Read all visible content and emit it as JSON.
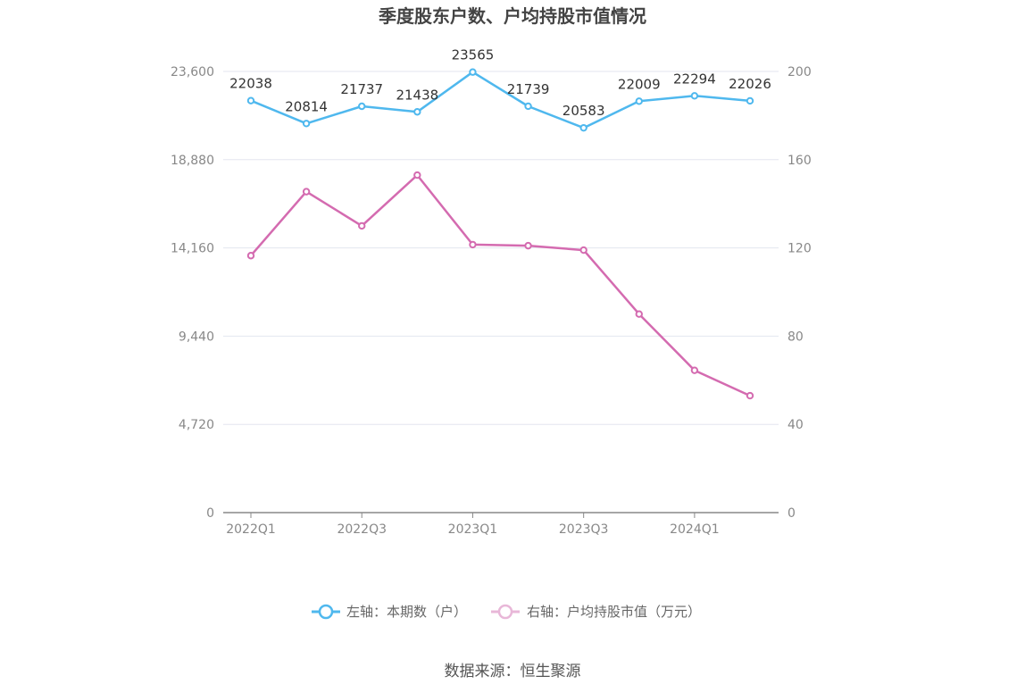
{
  "chart_data": {
    "type": "line",
    "title": "季度股东户数、户均持股市值情况",
    "categories": [
      "2022Q1",
      "2022Q2",
      "2022Q3",
      "2022Q4",
      "2023Q1",
      "2023Q2",
      "2023Q3",
      "2023Q4",
      "2024Q1",
      "2024Q2"
    ],
    "x_tick_labels": [
      "2022Q1",
      "2022Q3",
      "2023Q1",
      "2023Q3",
      "2024Q1"
    ],
    "y_left": {
      "ticks": [
        "0",
        "4,720",
        "9,440",
        "14,160",
        "18,880",
        "23,600"
      ],
      "min": 0,
      "max": 23600
    },
    "y_right": {
      "ticks": [
        "0",
        "40",
        "80",
        "120",
        "160",
        "200"
      ],
      "min": 0,
      "max": 200
    },
    "series": [
      {
        "name": "左轴：本期数（户）",
        "axis": "left",
        "color": "#4fb8ee",
        "values": [
          22038,
          20814,
          21737,
          21438,
          23565,
          21739,
          20583,
          22009,
          22294,
          22026
        ],
        "labels": [
          "22038",
          "20814",
          "21737",
          "21438",
          "23565",
          "21739",
          "20583",
          "22009",
          "22294",
          "22026"
        ]
      },
      {
        "name": "右轴：户均持股市值（万元）",
        "axis": "right",
        "color": "#d46bb0",
        "values": [
          116.5,
          145.5,
          130,
          153,
          121.5,
          121,
          119,
          90,
          64.5,
          53
        ]
      }
    ],
    "grid": true,
    "legend_position": "bottom"
  },
  "source": "数据来源：恒生聚源"
}
